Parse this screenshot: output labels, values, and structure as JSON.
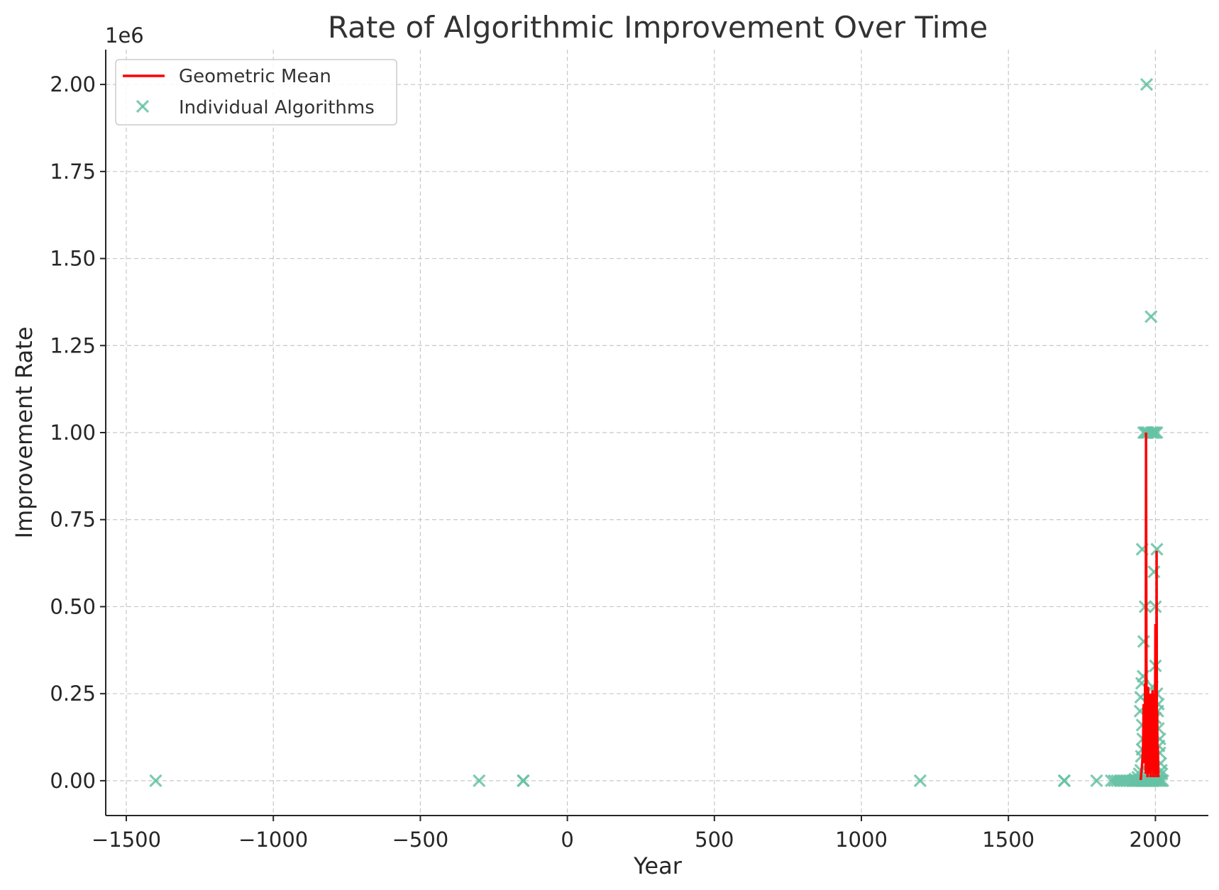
{
  "chart_data": {
    "type": "scatter",
    "title": "Rate of Algorithmic Improvement Over Time",
    "xlabel": "Year",
    "ylabel": "Improvement Rate",
    "y_offset_label": "1e6",
    "xlim": [
      -1570,
      2180
    ],
    "ylim": [
      -0.1,
      2.1
    ],
    "y_scale_factor": 1000000,
    "xticks": [
      -1500,
      -1000,
      -500,
      0,
      500,
      1000,
      1500,
      2000
    ],
    "xtick_labels": [
      "−1500",
      "−1000",
      "−500",
      "0",
      "500",
      "1000",
      "1500",
      "2000"
    ],
    "yticks": [
      0.0,
      0.25,
      0.5,
      0.75,
      1.0,
      1.25,
      1.5,
      1.75,
      2.0
    ],
    "ytick_labels": [
      "0.00",
      "0.25",
      "0.50",
      "0.75",
      "1.00",
      "1.25",
      "1.50",
      "1.75",
      "2.00"
    ],
    "grid": true,
    "legend_position": "top-left",
    "series": [
      {
        "name": "Geometric Mean",
        "kind": "line",
        "color": "#ff0000",
        "x": [
          1950,
          1955,
          1958,
          1960,
          1962,
          1965,
          1967,
          1968,
          1970,
          1972,
          1973,
          1975,
          1977,
          1978,
          1980,
          1982,
          1983,
          1985,
          1987,
          1988,
          1990,
          1992,
          1993,
          1995,
          1997,
          1998,
          2000,
          2001,
          2002,
          2003,
          2004,
          2005,
          2006,
          2007,
          2008,
          2010
        ],
        "y": [
          0.002,
          0.05,
          0.1,
          0.22,
          0.05,
          0.28,
          0.02,
          1.0,
          0.03,
          0.15,
          0.01,
          0.27,
          0.02,
          0.12,
          0.03,
          0.25,
          0.01,
          0.2,
          0.03,
          0.1,
          0.26,
          0.01,
          0.15,
          0.05,
          0.25,
          0.02,
          0.45,
          0.01,
          0.33,
          0.05,
          0.66,
          0.02,
          0.2,
          0.03,
          0.1,
          0.01
        ]
      },
      {
        "name": "Individual Algorithms",
        "kind": "scatter",
        "marker": "x",
        "color": "#66c2a5",
        "points": [
          [
            -1400,
            0.0
          ],
          [
            -300,
            0.0
          ],
          [
            -150,
            0.0
          ],
          [
            -150,
            0.0
          ],
          [
            1200,
            0.0
          ],
          [
            1690,
            0.0
          ],
          [
            1690,
            0.0
          ],
          [
            1800,
            0.0
          ],
          [
            1850,
            0.0
          ],
          [
            1860,
            0.0
          ],
          [
            1870,
            0.0
          ],
          [
            1880,
            0.0
          ],
          [
            1890,
            0.0
          ],
          [
            1900,
            0.0
          ],
          [
            1910,
            0.0
          ],
          [
            1920,
            0.0
          ],
          [
            1925,
            0.0
          ],
          [
            1930,
            0.0
          ],
          [
            1935,
            0.0
          ],
          [
            1940,
            0.0
          ],
          [
            1945,
            0.0
          ],
          [
            1950,
            0.0
          ],
          [
            1955,
            0.0
          ],
          [
            1960,
            0.0
          ],
          [
            1965,
            0.0
          ],
          [
            1970,
            0.0
          ],
          [
            1975,
            0.0
          ],
          [
            1980,
            0.0
          ],
          [
            1985,
            0.0
          ],
          [
            1990,
            0.0
          ],
          [
            1995,
            0.0
          ],
          [
            2000,
            0.0
          ],
          [
            2005,
            0.0
          ],
          [
            2010,
            0.0
          ],
          [
            2015,
            0.0
          ],
          [
            2020,
            0.0
          ],
          [
            2025,
            0.0
          ],
          [
            1930,
            0.005
          ],
          [
            1940,
            0.01
          ],
          [
            1945,
            0.02
          ],
          [
            1950,
            0.03
          ],
          [
            1952,
            0.07
          ],
          [
            1955,
            0.09
          ],
          [
            1957,
            0.12
          ],
          [
            1948,
            0.2
          ],
          [
            1950,
            0.24
          ],
          [
            1953,
            0.28
          ],
          [
            1955,
            0.16
          ],
          [
            1958,
            0.3
          ],
          [
            1955,
            0.665
          ],
          [
            1960,
            0.4
          ],
          [
            1965,
            0.5
          ],
          [
            1960,
            1.0
          ],
          [
            1965,
            1.0
          ],
          [
            1970,
            1.0
          ],
          [
            1975,
            1.0
          ],
          [
            1970,
            2.0
          ],
          [
            1985,
            1.333
          ],
          [
            1985,
            1.0
          ],
          [
            1990,
            1.0
          ],
          [
            1995,
            1.0
          ],
          [
            2000,
            1.0
          ],
          [
            2005,
            1.0
          ],
          [
            1995,
            0.6
          ],
          [
            2000,
            0.5
          ],
          [
            2005,
            0.665
          ],
          [
            2000,
            0.33
          ],
          [
            2005,
            0.25
          ],
          [
            2008,
            0.2
          ],
          [
            2010,
            0.15
          ],
          [
            2012,
            0.1
          ],
          [
            2015,
            0.08
          ],
          [
            2018,
            0.05
          ],
          [
            2020,
            0.03
          ],
          [
            2022,
            0.02
          ],
          [
            2010,
            0.22
          ],
          [
            2015,
            0.12
          ],
          [
            1990,
            0.2
          ],
          [
            1985,
            0.12
          ],
          [
            1980,
            0.08
          ],
          [
            1975,
            0.05
          ],
          [
            1975,
            0.22
          ],
          [
            1990,
            0.27
          ],
          [
            2000,
            0.18
          ]
        ]
      }
    ]
  }
}
